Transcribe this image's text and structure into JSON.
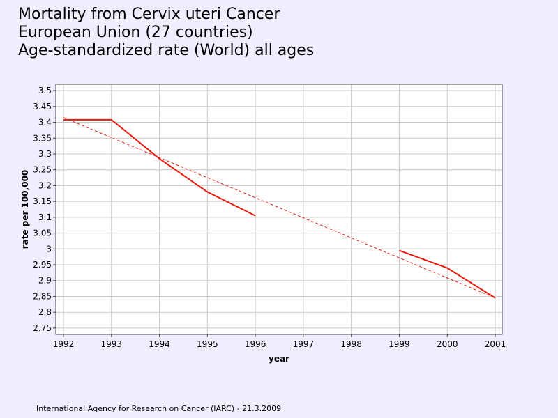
{
  "title": {
    "line1": "Mortality from Cervix uteri Cancer",
    "line2": "European Union (27 countries)",
    "line3": "Age-standardized rate (World) all ages"
  },
  "footer": "International Agency for Research on Cancer (IARC) - 21.3.2009",
  "colors": {
    "background": "#EEEEFF",
    "plot_background": "#FFFFFF",
    "grid": "#C8C8C8",
    "series": "#E8180C"
  },
  "chart_data": {
    "type": "line",
    "xlabel": "year",
    "ylabel": "rate per 100,000",
    "xlim": [
      1992,
      2001
    ],
    "ylim": [
      2.73,
      3.52
    ],
    "x_ticks": [
      1992,
      1993,
      1994,
      1995,
      1996,
      1997,
      1998,
      1999,
      2000,
      2001
    ],
    "y_ticks": [
      2.75,
      2.8,
      2.85,
      2.9,
      2.95,
      3,
      3.05,
      3.1,
      3.15,
      3.2,
      3.25,
      3.3,
      3.35,
      3.4,
      3.45,
      3.5
    ],
    "grid": true,
    "series": [
      {
        "style": "solid",
        "points": [
          {
            "x": 1992,
            "y": 3.408
          },
          {
            "x": 1993,
            "y": 3.408
          },
          {
            "x": 1994,
            "y": 3.285
          },
          {
            "x": 1995,
            "y": 3.18
          },
          {
            "x": 1996,
            "y": 3.105
          },
          {
            "x": 1997,
            "y": null
          },
          {
            "x": 1998,
            "y": null
          },
          {
            "x": 1999,
            "y": 2.995
          },
          {
            "x": 2000,
            "y": 2.94
          },
          {
            "x": 2001,
            "y": 2.845
          }
        ]
      },
      {
        "style": "dashed",
        "points": [
          {
            "x": 1992,
            "y": 3.415
          },
          {
            "x": 2001,
            "y": 2.845
          }
        ]
      }
    ]
  }
}
